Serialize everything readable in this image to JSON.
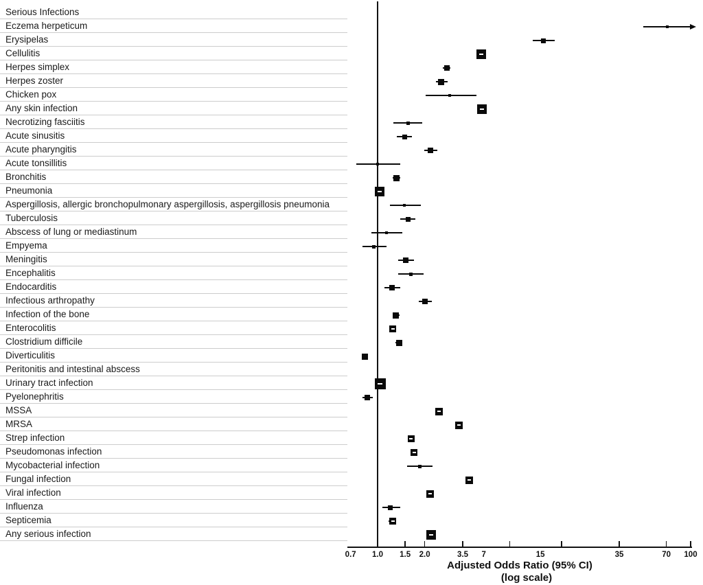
{
  "figure": {
    "background": "#ffffff",
    "text_color": "#1a1a1a",
    "separator_color": "#cccccc",
    "marker_color": "#0a0a0a"
  },
  "chart_data": {
    "type": "scatter",
    "subtype": "forest-plot",
    "title": "",
    "xlabel": "Adjusted Odds Ratio  (95% CI)",
    "xlabel_line2": "(log scale)",
    "x_scale": "log",
    "x_ticks": [
      "0.7",
      "1.0",
      "1.5",
      "2.0",
      "3.5",
      "7",
      "15",
      "35",
      "70",
      "100"
    ],
    "x_range": [
      0.65,
      100
    ],
    "reference_line": 1.0,
    "grid": false,
    "legend": "none",
    "rows": [
      {
        "label": "Serious Infections",
        "header": true,
        "or": null,
        "lo": null,
        "hi": null,
        "size": 0,
        "dash": false,
        "arrow": false
      },
      {
        "label": "Eczema herpeticum",
        "header": false,
        "or": 71,
        "lo": 50,
        "hi": 103,
        "size": 4,
        "dash": false,
        "arrow": true
      },
      {
        "label": "Erysipelas",
        "header": false,
        "or": 11.5,
        "lo": 9.8,
        "hi": 13.6,
        "size": 7,
        "dash": false,
        "arrow": false
      },
      {
        "label": "Cellulitis",
        "header": false,
        "or": 4.6,
        "lo": 4.35,
        "hi": 4.85,
        "size": 14,
        "dash": true,
        "arrow": false
      },
      {
        "label": "Herpes simplex",
        "header": false,
        "or": 2.76,
        "lo": 2.62,
        "hi": 2.92,
        "size": 8,
        "dash": false,
        "arrow": false
      },
      {
        "label": "Herpes zoster",
        "header": false,
        "or": 2.55,
        "lo": 2.36,
        "hi": 2.79,
        "size": 9,
        "dash": false,
        "arrow": false
      },
      {
        "label": "Chicken pox",
        "header": false,
        "or": 2.9,
        "lo": 2.03,
        "hi": 4.3,
        "size": 4,
        "dash": false,
        "arrow": false
      },
      {
        "label": "Any skin infection",
        "header": false,
        "or": 4.62,
        "lo": 4.4,
        "hi": 4.9,
        "size": 14,
        "dash": true,
        "arrow": false
      },
      {
        "label": "Necrotizing fasciitis",
        "header": false,
        "or": 1.56,
        "lo": 1.26,
        "hi": 1.93,
        "size": 5,
        "dash": false,
        "arrow": false
      },
      {
        "label": "Acute sinusitis",
        "header": false,
        "or": 1.49,
        "lo": 1.33,
        "hi": 1.66,
        "size": 7,
        "dash": false,
        "arrow": false
      },
      {
        "label": "Acute pharyngitis",
        "header": false,
        "or": 2.18,
        "lo": 1.99,
        "hi": 2.4,
        "size": 8,
        "dash": false,
        "arrow": false
      },
      {
        "label": "Acute tonsillitis",
        "header": false,
        "or": 1.0,
        "lo": 0.73,
        "hi": 1.4,
        "size": 4,
        "dash": false,
        "arrow": false
      },
      {
        "label": "Bronchitis",
        "header": false,
        "or": 1.32,
        "lo": 1.25,
        "hi": 1.4,
        "size": 9,
        "dash": false,
        "arrow": false
      },
      {
        "label": "Pneumonia",
        "header": false,
        "or": 1.03,
        "lo": 0.98,
        "hi": 1.09,
        "size": 14,
        "dash": true,
        "arrow": false
      },
      {
        "label": "Aspergillosis, allergic bronchopulmonary aspergillosis, aspergillosis pneumonia",
        "header": false,
        "or": 1.49,
        "lo": 1.2,
        "hi": 1.88,
        "size": 4,
        "dash": false,
        "arrow": false
      },
      {
        "label": "Tuberculosis",
        "header": false,
        "or": 1.56,
        "lo": 1.4,
        "hi": 1.75,
        "size": 7,
        "dash": false,
        "arrow": false
      },
      {
        "label": "Abscess of lung or mediastinum",
        "header": false,
        "or": 1.14,
        "lo": 0.91,
        "hi": 1.44,
        "size": 4,
        "dash": false,
        "arrow": false
      },
      {
        "label": "Empyema",
        "header": false,
        "or": 0.95,
        "lo": 0.8,
        "hi": 1.14,
        "size": 5,
        "dash": false,
        "arrow": false
      },
      {
        "label": "Meningitis",
        "header": false,
        "or": 1.51,
        "lo": 1.35,
        "hi": 1.7,
        "size": 8,
        "dash": false,
        "arrow": false
      },
      {
        "label": "Encephalitis",
        "header": false,
        "or": 1.64,
        "lo": 1.36,
        "hi": 1.96,
        "size": 5,
        "dash": false,
        "arrow": false
      },
      {
        "label": "Endocarditis",
        "header": false,
        "or": 1.24,
        "lo": 1.11,
        "hi": 1.39,
        "size": 8,
        "dash": false,
        "arrow": false
      },
      {
        "label": "Infectious arthropathy",
        "header": false,
        "or": 2.01,
        "lo": 1.83,
        "hi": 2.21,
        "size": 8,
        "dash": false,
        "arrow": false
      },
      {
        "label": "Infection of the bone",
        "header": false,
        "or": 1.31,
        "lo": 1.25,
        "hi": 1.38,
        "size": 9,
        "dash": false,
        "arrow": false
      },
      {
        "label": "Enterocolitis",
        "header": false,
        "or": 1.25,
        "lo": 1.19,
        "hi": 1.31,
        "size": 10,
        "dash": true,
        "arrow": false
      },
      {
        "label": "Clostridium difficile",
        "header": false,
        "or": 1.37,
        "lo": 1.3,
        "hi": 1.44,
        "size": 9,
        "dash": false,
        "arrow": false
      },
      {
        "label": "Diverticulitis",
        "header": false,
        "or": 0.83,
        "lo": 0.79,
        "hi": 0.87,
        "size": 9,
        "dash": false,
        "arrow": false
      },
      {
        "label": "Peritonitis and intestinal abscess",
        "header": false,
        "or": null,
        "lo": null,
        "hi": null,
        "size": 0,
        "dash": false,
        "arrow": false
      },
      {
        "label": "Urinary tract infection",
        "header": false,
        "or": 1.04,
        "lo": 0.99,
        "hi": 1.09,
        "size": 16,
        "dash": true,
        "arrow": false
      },
      {
        "label": "Pyelonephritis",
        "header": false,
        "or": 0.86,
        "lo": 0.8,
        "hi": 0.93,
        "size": 8,
        "dash": false,
        "arrow": false
      },
      {
        "label": "MSSA",
        "header": false,
        "or": 2.48,
        "lo": 2.36,
        "hi": 2.6,
        "size": 11,
        "dash": true,
        "arrow": false
      },
      {
        "label": "MRSA",
        "header": false,
        "or": 3.3,
        "lo": 3.14,
        "hi": 3.47,
        "size": 11,
        "dash": true,
        "arrow": false
      },
      {
        "label": "Strep infection",
        "header": false,
        "or": 1.64,
        "lo": 1.57,
        "hi": 1.71,
        "size": 10,
        "dash": true,
        "arrow": false
      },
      {
        "label": "Pseudomonas infection",
        "header": false,
        "or": 1.71,
        "lo": 1.63,
        "hi": 1.79,
        "size": 10,
        "dash": true,
        "arrow": false
      },
      {
        "label": "Mycobacterial infection",
        "header": false,
        "or": 1.86,
        "lo": 1.55,
        "hi": 2.24,
        "size": 5,
        "dash": false,
        "arrow": false
      },
      {
        "label": "Fungal infection",
        "header": false,
        "or": 3.87,
        "lo": 3.68,
        "hi": 4.07,
        "size": 11,
        "dash": true,
        "arrow": false
      },
      {
        "label": "Viral infection",
        "header": false,
        "or": 2.17,
        "lo": 2.07,
        "hi": 2.28,
        "size": 11,
        "dash": true,
        "arrow": false
      },
      {
        "label": "Influenza",
        "header": false,
        "or": 1.21,
        "lo": 1.07,
        "hi": 1.39,
        "size": 7,
        "dash": false,
        "arrow": false
      },
      {
        "label": "Septicemia",
        "header": false,
        "or": 1.25,
        "lo": 1.18,
        "hi": 1.32,
        "size": 10,
        "dash": true,
        "arrow": false
      },
      {
        "label": "Any serious infection",
        "header": false,
        "or": 2.19,
        "lo": 2.1,
        "hi": 2.28,
        "size": 14,
        "dash": true,
        "arrow": false
      }
    ]
  }
}
